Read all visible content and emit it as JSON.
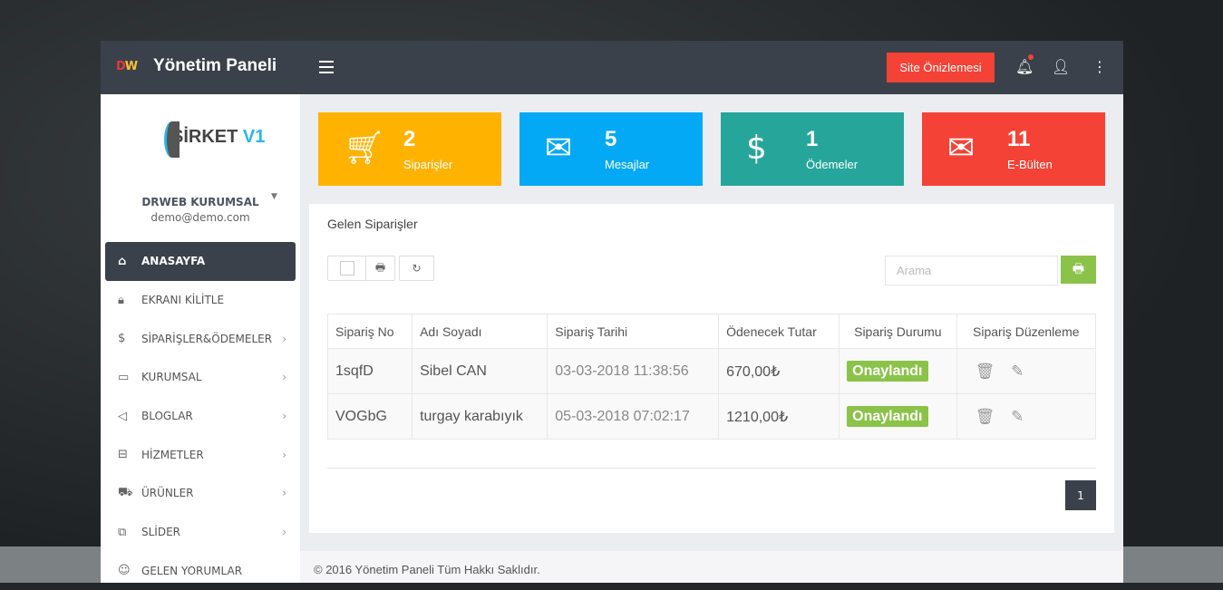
{
  "header": {
    "logo": "DW",
    "title": "Yönetim Paneli",
    "preview_button": "Site Önizlemesi"
  },
  "sidebar": {
    "brand": "ŞİRKET",
    "brand_version": "V1",
    "user_name": "DRWEB KURUMSAL",
    "user_email": "demo@demo.com",
    "items": [
      {
        "label": "ANASAYFA",
        "icon": "⌂"
      },
      {
        "label": "EKRANI KİLİTLE",
        "icon": "🔒︎"
      },
      {
        "label": "SİPARİŞLER&ÖDEMELER",
        "icon": "$"
      },
      {
        "label": "KURUMSAL",
        "icon": "▭"
      },
      {
        "label": "BLOGLAR",
        "icon": "◁"
      },
      {
        "label": "HİZMETLER",
        "icon": "⊟"
      },
      {
        "label": "ÜRÜNLER",
        "icon": "⛟"
      },
      {
        "label": "SLİDER",
        "icon": "⧉"
      },
      {
        "label": "GELEN YORUMLAR",
        "icon": "☺"
      }
    ]
  },
  "cards": [
    {
      "count": "2",
      "label": "Siparişler",
      "icon": "🛒︎",
      "color": "#ffb300"
    },
    {
      "count": "5",
      "label": "Mesajlar",
      "icon": "✉",
      "color": "#03a9f4"
    },
    {
      "count": "1",
      "label": "Ödemeler",
      "icon": "$",
      "color": "#26a69a"
    },
    {
      "count": "11",
      "label": "E-Bülten",
      "icon": "✉",
      "color": "#f44336"
    }
  ],
  "orders": {
    "title": "Gelen Siparişler",
    "search_placeholder": "Arama",
    "columns": [
      "Sipariş No",
      "Adı Soyadı",
      "Sipariş Tarihi",
      "Ödenecek Tutar",
      "Sipariş Durumu",
      "Sipariş Düzenleme"
    ],
    "rows": [
      {
        "no": "1sqfD",
        "name": "Sibel CAN",
        "date": "03-03-2018 11:38:56",
        "amount": "670,00₺",
        "status": "Onaylandı"
      },
      {
        "no": "VOGbG",
        "name": "turgay karabıyık",
        "date": "05-03-2018 07:02:17",
        "amount": "1210,00₺",
        "status": "Onaylandı"
      }
    ],
    "page": "1"
  },
  "footer": "© 2016 Yönetim Paneli Tüm Hakkı Saklıdır."
}
